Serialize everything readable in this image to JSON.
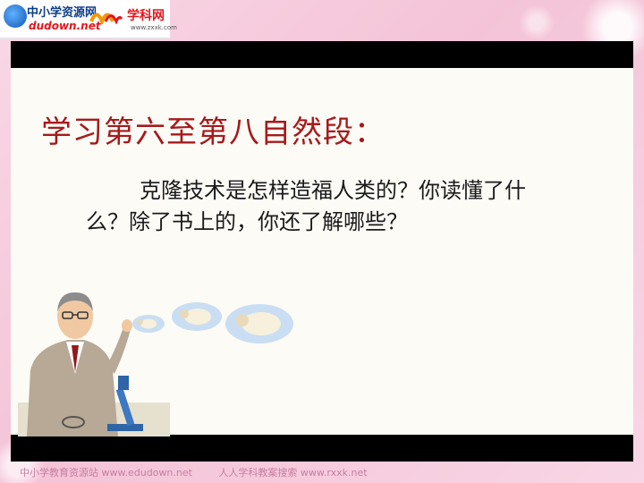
{
  "header": {
    "logo_left": {
      "cn": "中小学资源网",
      "en": "dudown.net"
    },
    "logo_right": {
      "cn": "学科网",
      "en": "www.zxxk.com"
    }
  },
  "slide": {
    "title": "学习第六至第八自然段：",
    "question": "克隆技术是怎样造福人类的？你读懂了什么？除了书上的，你还了解哪些？"
  },
  "footer": {
    "left": "中小学教育资源站 www.edudown.net",
    "right": "人人学科教案搜索 www.rxxk.net"
  },
  "colors": {
    "background": "#f7d3e3",
    "title": "#a51b1b",
    "frame": "#000000"
  },
  "icons": [
    "scientist-illustration",
    "sheep-icon"
  ]
}
